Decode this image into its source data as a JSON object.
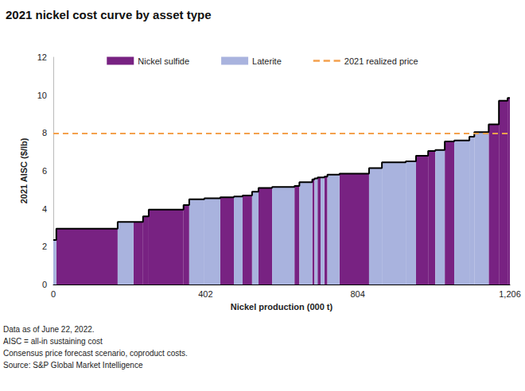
{
  "chart_data": {
    "type": "cost_curve",
    "title": "2021 nickel cost curve by asset type",
    "x_label": "Nickel production (000 t)",
    "y_label": "2021 AISC ($/lb)",
    "xlim": [
      0,
      1206
    ],
    "xticks": [
      0,
      402,
      804,
      {
        "value": 1206,
        "label": "1,206"
      }
    ],
    "ylim": [
      0,
      12
    ],
    "yticks": [
      0,
      2,
      4,
      6,
      8,
      10,
      12
    ],
    "grid": false,
    "legend": "top",
    "series": [
      {
        "name": "Nickel sulfide",
        "color": "#782282"
      },
      {
        "name": "Laterite",
        "color": "#a9b3de"
      }
    ],
    "segments": [
      {
        "asset": "Laterite",
        "production": 8,
        "aisc": 2.35
      },
      {
        "asset": "Nickel sulfide",
        "production": 162,
        "aisc": 2.95
      },
      {
        "asset": "Laterite",
        "production": 42,
        "aisc": 3.3
      },
      {
        "asset": "Nickel sulfide",
        "production": 25,
        "aisc": 3.3
      },
      {
        "asset": "Nickel sulfide",
        "production": 15,
        "aisc": 3.6
      },
      {
        "asset": "Nickel sulfide",
        "production": 92,
        "aisc": 3.95
      },
      {
        "asset": "Nickel sulfide",
        "production": 15,
        "aisc": 4.2
      },
      {
        "asset": "Laterite",
        "production": 40,
        "aisc": 4.5
      },
      {
        "asset": "Laterite",
        "production": 42,
        "aisc": 4.55
      },
      {
        "asset": "Nickel sulfide",
        "production": 36,
        "aisc": 4.6
      },
      {
        "asset": "Laterite",
        "production": 23,
        "aisc": 4.65
      },
      {
        "asset": "Nickel sulfide",
        "production": 25,
        "aisc": 4.7
      },
      {
        "asset": "Laterite",
        "production": 17,
        "aisc": 4.9
      },
      {
        "asset": "Nickel sulfide",
        "production": 36,
        "aisc": 5.1
      },
      {
        "asset": "Laterite",
        "production": 59,
        "aisc": 5.15
      },
      {
        "asset": "Nickel sulfide",
        "production": 13,
        "aisc": 5.2
      },
      {
        "asset": "Laterite",
        "production": 34,
        "aisc": 5.4
      },
      {
        "asset": "Nickel sulfide",
        "production": 6,
        "aisc": 5.55
      },
      {
        "asset": "Laterite",
        "production": 8,
        "aisc": 5.6
      },
      {
        "asset": "Nickel sulfide",
        "production": 8,
        "aisc": 5.65
      },
      {
        "asset": "Laterite",
        "production": 10,
        "aisc": 5.65
      },
      {
        "asset": "Nickel sulfide",
        "production": 8,
        "aisc": 5.7
      },
      {
        "asset": "Laterite",
        "production": 32,
        "aisc": 5.8
      },
      {
        "asset": "Nickel sulfide",
        "production": 78,
        "aisc": 5.85
      },
      {
        "asset": "Laterite",
        "production": 34,
        "aisc": 6.15
      },
      {
        "asset": "Laterite",
        "production": 63,
        "aisc": 6.45
      },
      {
        "asset": "Laterite",
        "production": 27,
        "aisc": 6.5
      },
      {
        "asset": "Nickel sulfide",
        "production": 32,
        "aisc": 6.8
      },
      {
        "asset": "Nickel sulfide",
        "production": 19,
        "aisc": 7.05
      },
      {
        "asset": "Laterite",
        "production": 25,
        "aisc": 7.1
      },
      {
        "asset": "Nickel sulfide",
        "production": 25,
        "aisc": 7.55
      },
      {
        "asset": "Laterite",
        "production": 40,
        "aisc": 7.6
      },
      {
        "asset": "Laterite",
        "production": 13,
        "aisc": 7.8
      },
      {
        "asset": "Laterite",
        "production": 38,
        "aisc": 8.05
      },
      {
        "asset": "Nickel sulfide",
        "production": 27,
        "aisc": 8.45
      },
      {
        "asset": "Nickel sulfide",
        "production": 23,
        "aisc": 9.7
      },
      {
        "asset": "Nickel sulfide",
        "production": 6,
        "aisc": 9.85
      }
    ],
    "reference_line": {
      "name": "2021 realized price",
      "value": 8,
      "color": "#f4a14d",
      "line_style": "dashed"
    },
    "notes": [
      "Data as of June 22, 2022.",
      "AISC = all-in sustaining cost",
      "Consensus price forecast scenario, coproduct costs.",
      "Source: S&P Global Market Intelligence"
    ]
  }
}
